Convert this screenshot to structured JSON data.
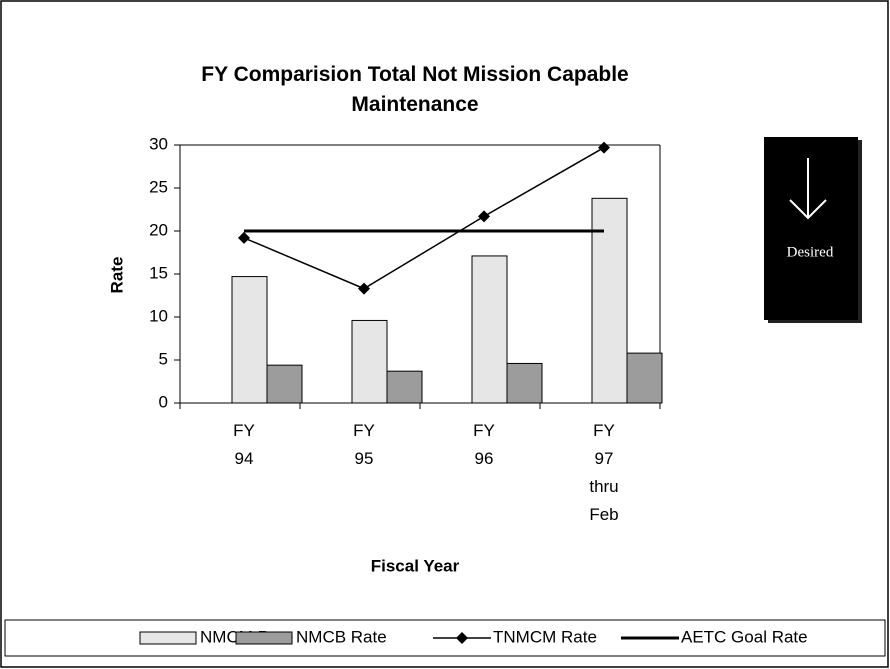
{
  "chart_data": {
    "type": "bar",
    "title": "FY Comparision Total Not Mission Capable Maintenance",
    "x_label": "Fiscal Year",
    "y_label": "Rate",
    "annotation": "Desired",
    "categories": [
      "FY 94",
      "FY 95",
      "FY 96",
      "FY 97 thru Feb"
    ],
    "series": [
      {
        "name": "NMCM Rate",
        "type": "bar",
        "color": "#e6e6e6",
        "values": [
          14.7,
          9.6,
          17.1,
          23.8
        ]
      },
      {
        "name": "NMCB Rate",
        "type": "bar",
        "color": "#9c9c9c",
        "values": [
          4.4,
          3.7,
          4.6,
          5.8
        ]
      },
      {
        "name": "TNMCM Rate",
        "type": "line",
        "color": "#000000",
        "values": [
          19.2,
          13.3,
          21.7,
          29.7
        ]
      },
      {
        "name": "AETC Goal  Rate",
        "type": "line",
        "color": "#000000",
        "values": [
          20,
          20,
          20,
          20
        ]
      }
    ],
    "ylim": [
      0,
      30
    ],
    "yticks": [
      0,
      5,
      10,
      15,
      20,
      25,
      30
    ],
    "legend": "bottom"
  }
}
